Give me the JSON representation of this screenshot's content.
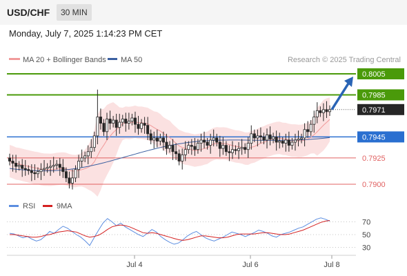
{
  "header": {
    "pair": "USD/CHF",
    "timeframe": "30 MIN",
    "datetime": "Monday, July 7, 2025 1:14:23 PM CET"
  },
  "legend": {
    "ma20_bb": "MA 20 + Bollinger Bands",
    "ma50": "MA 50",
    "credit": "Research © 2025 Trading Central"
  },
  "rsi_legend": {
    "rsi": "RSI",
    "ma9": "9MA"
  },
  "colors": {
    "green": "#4a9a0a",
    "blue": "#2a6fd0",
    "red": "#e06060",
    "dark": "#262626",
    "arrow": "#2a64b5",
    "band": "#fbe1e1",
    "ma20": "#f19a9a",
    "ma50": "#3a5fa0",
    "rsi": "#5b8de0",
    "rsi_ma": "#d42020"
  },
  "chart_data": [
    {
      "type": "candlestick",
      "title": "USD/CHF",
      "x_ticks": [
        "Jul 4",
        "Jul 6",
        "Jul 8"
      ],
      "price_levels": [
        {
          "label": "0.8005",
          "value": 0.8005,
          "style": "green-line-box"
        },
        {
          "label": "0.7985",
          "value": 0.7985,
          "style": "green-line-box"
        },
        {
          "label": "0.7971",
          "value": 0.7971,
          "style": "current-price"
        },
        {
          "label": "0.7945",
          "value": 0.7945,
          "style": "blue-line-box"
        },
        {
          "label": "0.7925",
          "value": 0.7925,
          "style": "red-line"
        },
        {
          "label": "0.7900",
          "value": 0.79,
          "style": "red-line"
        }
      ],
      "closes": [
        0.7922,
        0.792,
        0.7917,
        0.7918,
        0.7915,
        0.7914,
        0.7913,
        0.7911,
        0.791,
        0.7912,
        0.7914,
        0.7915,
        0.7916,
        0.7917,
        0.7918,
        0.7919,
        0.7916,
        0.7912,
        0.7906,
        0.7901,
        0.7906,
        0.7914,
        0.7922,
        0.7925,
        0.7927,
        0.7931,
        0.7935,
        0.7946,
        0.7964,
        0.7958,
        0.795,
        0.7962,
        0.7958,
        0.7961,
        0.7954,
        0.7959,
        0.7962,
        0.7958,
        0.796,
        0.7963,
        0.7957,
        0.7953,
        0.7958,
        0.7956,
        0.7948,
        0.7942,
        0.7944,
        0.7941,
        0.7944,
        0.794,
        0.7934,
        0.7937,
        0.7931,
        0.7929,
        0.7922,
        0.7928,
        0.7933,
        0.7937,
        0.7936,
        0.7933,
        0.7939,
        0.7942,
        0.794,
        0.7937,
        0.7942,
        0.7944,
        0.794,
        0.7934,
        0.7937,
        0.7931,
        0.793,
        0.7933,
        0.7932,
        0.7934,
        0.7935,
        0.7933,
        0.7939,
        0.7948,
        0.7944,
        0.7946,
        0.7945,
        0.7942,
        0.7947,
        0.7943,
        0.7945,
        0.794,
        0.7941,
        0.7939,
        0.7942,
        0.7937,
        0.794,
        0.7942,
        0.7943,
        0.7944,
        0.7952,
        0.795,
        0.7957,
        0.7964,
        0.797,
        0.7968,
        0.7971,
        0.7969,
        0.7971
      ],
      "bollinger": {
        "upper_at_start": 0.7932,
        "lower_at_start": 0.7898,
        "upper_mid": 0.7975,
        "lower_mid": 0.7918
      },
      "ma50_range": [
        0.7915,
        0.7946
      ],
      "current_price": 0.7971,
      "projection_target": 0.8005
    },
    {
      "type": "line",
      "title": "RSI",
      "y_ticks": [
        70,
        50,
        30
      ],
      "series": [
        {
          "name": "RSI",
          "values": [
            52,
            51,
            48,
            45,
            47,
            43,
            40,
            42,
            48,
            55,
            52,
            58,
            63,
            60,
            55,
            50,
            46,
            40,
            33,
            45,
            57,
            68,
            75,
            70,
            64,
            68,
            62,
            58,
            54,
            50,
            47,
            52,
            58,
            54,
            47,
            42,
            38,
            35,
            37,
            42,
            48,
            52,
            55,
            50,
            45,
            42,
            40,
            43,
            46,
            50,
            54,
            52,
            50,
            47,
            50,
            53,
            57,
            55,
            52,
            48,
            46,
            50,
            52,
            54,
            57,
            60,
            62,
            66,
            70,
            74,
            76,
            74,
            71
          ]
        },
        {
          "name": "9MA",
          "values": [
            50,
            50,
            49,
            48,
            47,
            46,
            46,
            47,
            49,
            50,
            52,
            54,
            55,
            56,
            55,
            54,
            51,
            48,
            46,
            47,
            49,
            53,
            58,
            62,
            64,
            65,
            64,
            62,
            59,
            56,
            53,
            52,
            53,
            52,
            50,
            48,
            46,
            44,
            42,
            41,
            42,
            44,
            46,
            48,
            48,
            47,
            46,
            45,
            45,
            46,
            48,
            50,
            51,
            51,
            51,
            51,
            52,
            53,
            53,
            52,
            51,
            50,
            50,
            51,
            53,
            55,
            57,
            60,
            63,
            66,
            69,
            71,
            72
          ]
        }
      ]
    }
  ]
}
